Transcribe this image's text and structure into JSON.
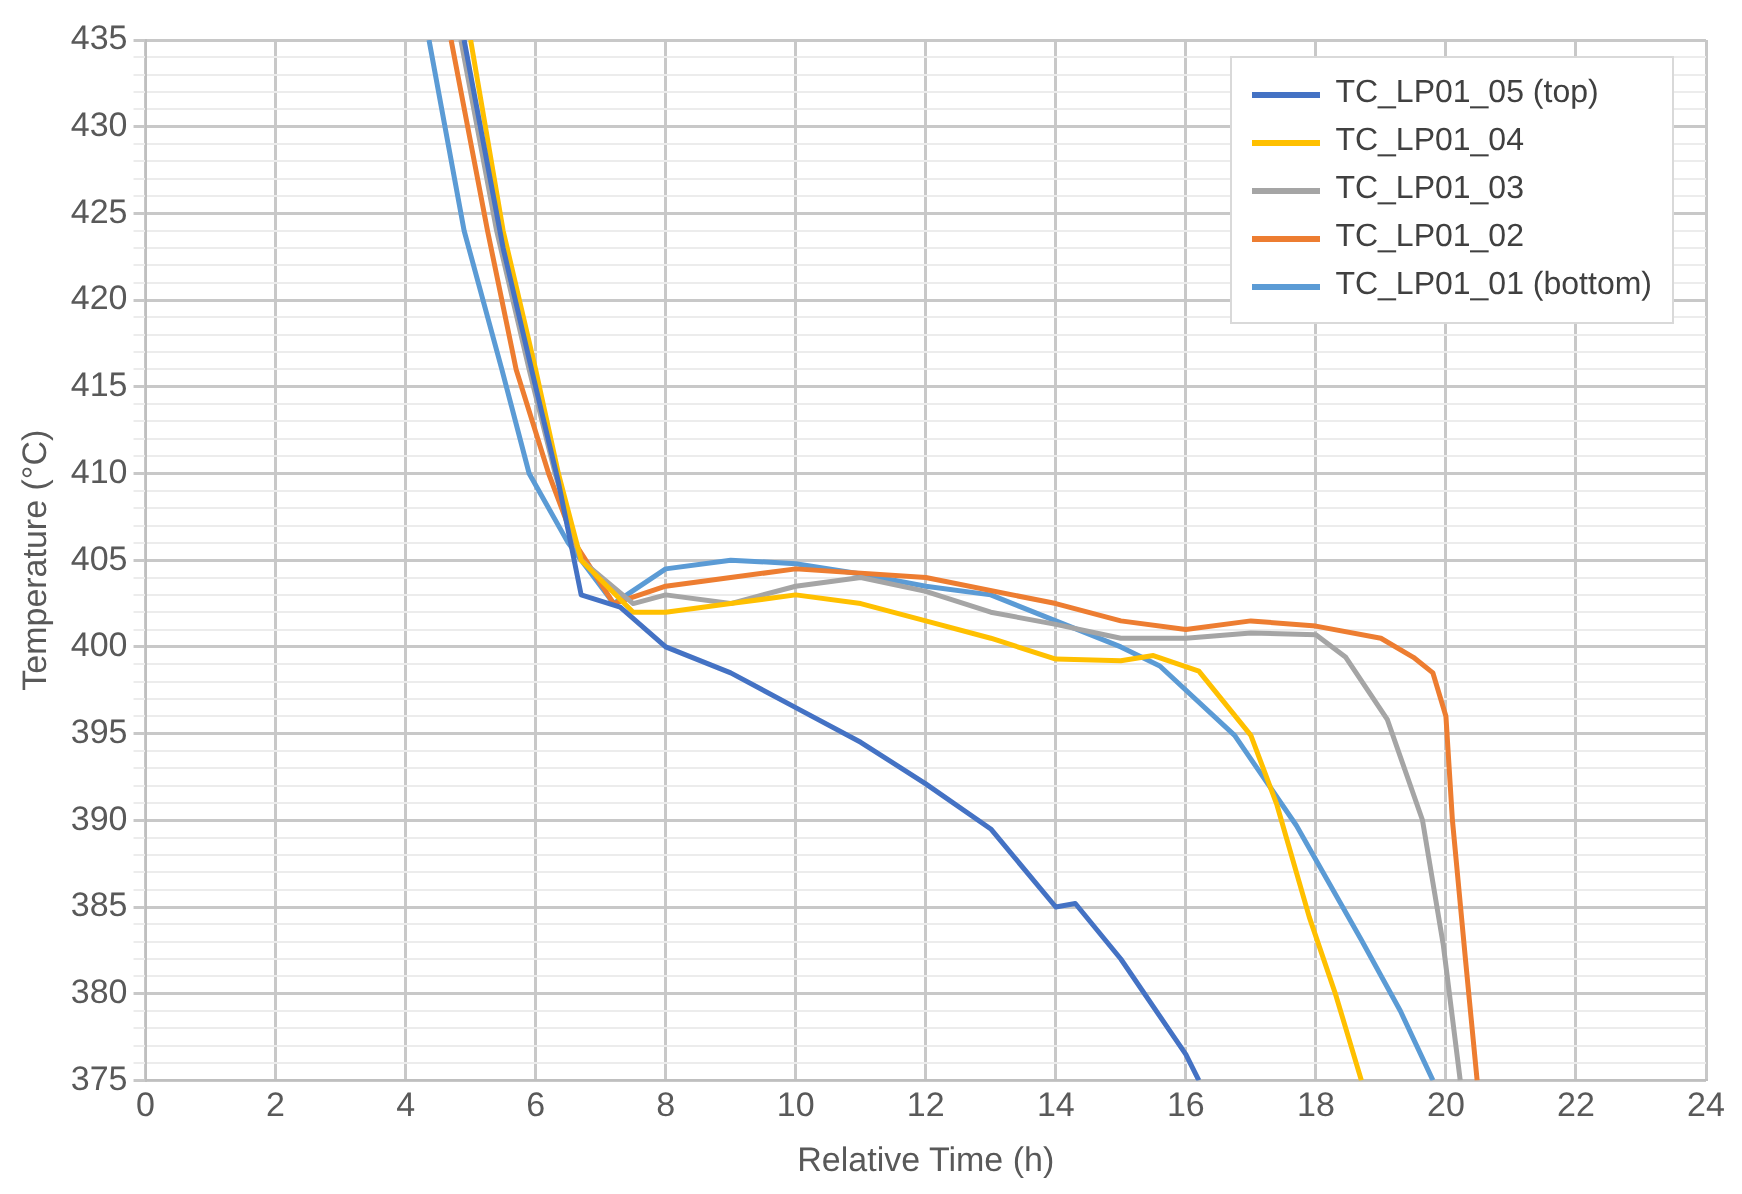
{
  "chart_data": {
    "type": "line",
    "xlabel": "Relative Time (h)",
    "ylabel": "Temperature (°C)",
    "xlim": [
      0,
      24
    ],
    "xticks": [
      0,
      2,
      4,
      6,
      8,
      10,
      12,
      14,
      16,
      18,
      20,
      22,
      24
    ],
    "ylim": [
      375,
      435
    ],
    "yticks": [
      375,
      {
        "value": 376,
        "label": null
      },
      {
        "value": 377,
        "label": null
      },
      {
        "value": 378,
        "label": null
      },
      {
        "value": 379,
        "label": null
      },
      380,
      {
        "value": 381,
        "label": null
      },
      {
        "value": 382,
        "label": null
      },
      {
        "value": 383,
        "label": null
      },
      {
        "value": 384,
        "label": null
      },
      385,
      {
        "value": 386,
        "label": null
      },
      {
        "value": 387,
        "label": null
      },
      {
        "value": 388,
        "label": null
      },
      {
        "value": 389,
        "label": null
      },
      390,
      {
        "value": 391,
        "label": null
      },
      {
        "value": 392,
        "label": null
      },
      {
        "value": 393,
        "label": null
      },
      {
        "value": 394,
        "label": null
      },
      395,
      {
        "value": 396,
        "label": null
      },
      {
        "value": 397,
        "label": null
      },
      {
        "value": 398,
        "label": null
      },
      {
        "value": 399,
        "label": null
      },
      400,
      {
        "value": 401,
        "label": null
      },
      {
        "value": 402,
        "label": null
      },
      {
        "value": 403,
        "label": null
      },
      {
        "value": 404,
        "label": null
      },
      405,
      {
        "value": 406,
        "label": null
      },
      {
        "value": 407,
        "label": null
      },
      {
        "value": 408,
        "label": null
      },
      {
        "value": 409,
        "label": null
      },
      410,
      {
        "value": 411,
        "label": null
      },
      {
        "value": 412,
        "label": null
      },
      {
        "value": 413,
        "label": null
      },
      {
        "value": 414,
        "label": null
      },
      415,
      {
        "value": 416,
        "label": null
      },
      {
        "value": 417,
        "label": null
      },
      {
        "value": 418,
        "label": null
      },
      {
        "value": 419,
        "label": null
      },
      420,
      {
        "value": 421,
        "label": null
      },
      {
        "value": 422,
        "label": null
      },
      {
        "value": 423,
        "label": null
      },
      {
        "value": 424,
        "label": null
      },
      425,
      {
        "value": 426,
        "label": null
      },
      {
        "value": 427,
        "label": null
      },
      {
        "value": 428,
        "label": null
      },
      {
        "value": 429,
        "label": null
      },
      430,
      {
        "value": 431,
        "label": null
      },
      {
        "value": 432,
        "label": null
      },
      {
        "value": 433,
        "label": null
      },
      {
        "value": 434,
        "label": null
      },
      435
    ],
    "grid": true,
    "legend": "top right",
    "marker": "none",
    "line_style": "solid",
    "series": [
      {
        "name": "TC_LP01_05 (top)",
        "color": "#4472c4",
        "x": [
          4.9,
          5.5,
          6.0,
          6.35,
          6.7,
          7.3,
          8.0,
          9.0,
          10.0,
          11.0,
          12.0,
          13.0,
          14.0,
          14.3,
          15.0,
          16.0,
          16.2
        ],
        "values": [
          435,
          423,
          415,
          409.5,
          403,
          402.3,
          400,
          398.5,
          396.5,
          394.5,
          392.1,
          389.5,
          385,
          385.2,
          382,
          376.5,
          375
        ]
      },
      {
        "name": "TC_LP01_04",
        "color": "#ffc000",
        "x": [
          5.0,
          5.5,
          6.0,
          6.35,
          6.7,
          7.5,
          8.0,
          9.0,
          10.0,
          11.0,
          12.0,
          13.0,
          14.0,
          15.0,
          15.5,
          16.2,
          17.0,
          17.4,
          17.9,
          18.3,
          18.7
        ],
        "values": [
          435,
          424,
          416,
          410,
          405,
          402,
          402,
          402.5,
          403,
          402.5,
          401.5,
          400.5,
          399.3,
          399.2,
          399.5,
          398.6,
          394.9,
          390.9,
          384.4,
          380,
          375
        ]
      },
      {
        "name": "TC_LP01_03",
        "color": "#a5a5a5",
        "x": [
          4.85,
          5.4,
          5.9,
          6.3,
          6.7,
          7.5,
          8.0,
          9.0,
          10.0,
          11.0,
          12.0,
          13.0,
          14.0,
          15.0,
          16.0,
          17.0,
          18.0,
          18.46,
          19.1,
          19.64,
          19.96,
          20.22
        ],
        "values": [
          435,
          424,
          416,
          410,
          405,
          402.5,
          403,
          402.5,
          403.5,
          404,
          403.2,
          402,
          401.3,
          400.5,
          400.5,
          400.8,
          400.7,
          399.4,
          395.8,
          390,
          382.8,
          375
        ]
      },
      {
        "name": "TC_LP01_02",
        "color": "#ed7d31",
        "x": [
          4.7,
          5.26,
          5.7,
          6.2,
          6.6,
          7.2,
          8.0,
          9.0,
          10.0,
          12.0,
          14.0,
          15.0,
          16.0,
          17.0,
          18.0,
          19.0,
          19.5,
          19.8,
          20.0,
          20.1,
          20.3,
          20.48
        ],
        "values": [
          435,
          424,
          416,
          410,
          406,
          402.5,
          403.5,
          404,
          404.5,
          404,
          402.5,
          401.5,
          401,
          401.5,
          401.2,
          400.5,
          399.4,
          398.5,
          396,
          390,
          382,
          375
        ]
      },
      {
        "name": "TC_LP01_01 (bottom)",
        "color": "#5b9bd5",
        "x": [
          4.36,
          4.9,
          5.48,
          5.9,
          6.5,
          7.2,
          8.0,
          9.0,
          10.0,
          11.0,
          12.0,
          13.0,
          14.0,
          15.0,
          15.6,
          16.75,
          17.7,
          18.7,
          19.3,
          19.8
        ],
        "values": [
          435,
          424,
          416,
          410,
          406,
          402.5,
          404.5,
          405,
          404.8,
          404.2,
          403.5,
          403,
          401.5,
          400,
          398.9,
          394.9,
          389.7,
          383.1,
          379,
          375
        ]
      }
    ]
  }
}
